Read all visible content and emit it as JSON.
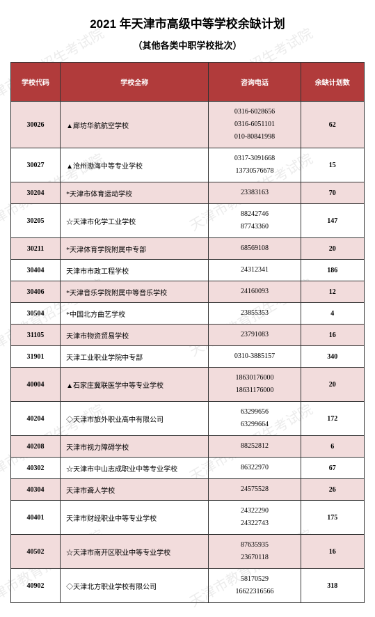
{
  "title": "2021 年天津市高级中等学校余缺计划",
  "subtitle": "（其他各类中职学校批次）",
  "watermark_text": "天津市教育招生考试院",
  "table": {
    "header_bg": "#b13b3b",
    "header_fg": "#ffffff",
    "alt_row_bg": "#f2dcdc",
    "border_color": "#333333",
    "columns": [
      {
        "key": "code",
        "label": "学校代码",
        "width": "14%"
      },
      {
        "key": "name",
        "label": "学校全称",
        "width": "42%"
      },
      {
        "key": "phone",
        "label": "咨询电话",
        "width": "26%"
      },
      {
        "key": "count",
        "label": "余缺计划数",
        "width": "18%"
      }
    ],
    "rows": [
      {
        "code": "30026",
        "name": "▲廊坊华航航空学校",
        "phones": [
          "0316-6028656",
          "0316-6051101",
          "010-80841998"
        ],
        "count": "62",
        "alt": true
      },
      {
        "code": "30027",
        "name": "▲沧州渤海中等专业学校",
        "phones": [
          "0317-3091668",
          "13730576678"
        ],
        "count": "15",
        "alt": false
      },
      {
        "code": "30204",
        "name": "*天津市体育运动学校",
        "phones": [
          "23383163"
        ],
        "count": "70",
        "alt": true
      },
      {
        "code": "30205",
        "name": "☆天津市化学工业学校",
        "phones": [
          "88242746",
          "87743360"
        ],
        "count": "147",
        "alt": false
      },
      {
        "code": "30211",
        "name": "*天津体育学院附属中专部",
        "phones": [
          "68569108"
        ],
        "count": "20",
        "alt": true
      },
      {
        "code": "30404",
        "name": "天津市市政工程学校",
        "phones": [
          "24312341"
        ],
        "count": "186",
        "alt": false
      },
      {
        "code": "30406",
        "name": "*天津音乐学院附属中等音乐学校",
        "phones": [
          "24160093"
        ],
        "count": "12",
        "alt": true
      },
      {
        "code": "30504",
        "name": "*中国北方曲艺学校",
        "phones": [
          "23855353"
        ],
        "count": "4",
        "alt": false
      },
      {
        "code": "31105",
        "name": "天津市物资贸易学校",
        "phones": [
          "23791083"
        ],
        "count": "16",
        "alt": true
      },
      {
        "code": "31901",
        "name": "天津工业职业学院中专部",
        "phones": [
          "0310-3885157"
        ],
        "count": "340",
        "alt": false
      },
      {
        "code": "40004",
        "name": "▲石家庄冀联医学中等专业学校",
        "phones": [
          "18630176000",
          "18631176000"
        ],
        "count": "20",
        "alt": true
      },
      {
        "code": "40204",
        "name": "◇天津市旅外职业高中有限公司",
        "phones": [
          "63299656",
          "63299664"
        ],
        "count": "172",
        "alt": false
      },
      {
        "code": "40208",
        "name": "天津市视力障碍学校",
        "phones": [
          "88252812"
        ],
        "count": "6",
        "alt": true
      },
      {
        "code": "40302",
        "name": "☆天津市中山志成职业中等专业学校",
        "phones": [
          "86322970"
        ],
        "count": "67",
        "alt": false
      },
      {
        "code": "40304",
        "name": "天津市聋人学校",
        "phones": [
          "24575528"
        ],
        "count": "26",
        "alt": true
      },
      {
        "code": "40401",
        "name": "天津市财经职业中等专业学校",
        "phones": [
          "24322290",
          "24322743"
        ],
        "count": "175",
        "alt": false
      },
      {
        "code": "40502",
        "name": "☆天津市南开区职业中等专业学校",
        "phones": [
          "87635935",
          "23670118"
        ],
        "count": "16",
        "alt": true
      },
      {
        "code": "40902",
        "name": "◇天津北方职业学校有限公司",
        "phones": [
          "58170529",
          "16622316566"
        ],
        "count": "318",
        "alt": false
      }
    ]
  }
}
